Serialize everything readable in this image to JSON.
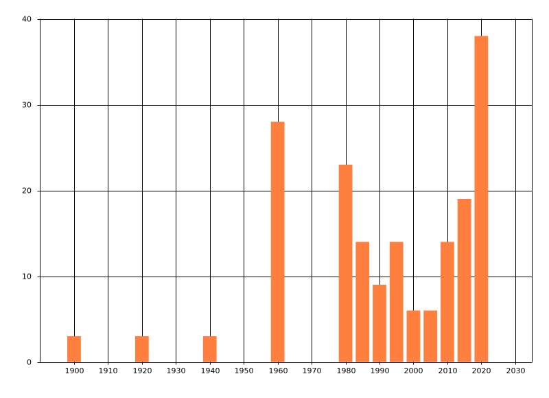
{
  "chart_data": {
    "type": "bar",
    "x": [
      1900,
      1920,
      1940,
      1960,
      1980,
      1985,
      1990,
      1995,
      2000,
      2005,
      2010,
      2015,
      2020
    ],
    "values": [
      3,
      3,
      3,
      28,
      23,
      14,
      9,
      14,
      6,
      6,
      14,
      19,
      38
    ],
    "color": "#ff7f3f",
    "xlim": [
      1890,
      2035
    ],
    "xticks": [
      1900,
      1910,
      1920,
      1930,
      1940,
      1950,
      1960,
      1970,
      1980,
      1990,
      2000,
      2010,
      2020,
      2030
    ],
    "ylim": [
      0,
      40
    ],
    "yticks": [
      0,
      10,
      20,
      30,
      40
    ],
    "grid": true
  }
}
